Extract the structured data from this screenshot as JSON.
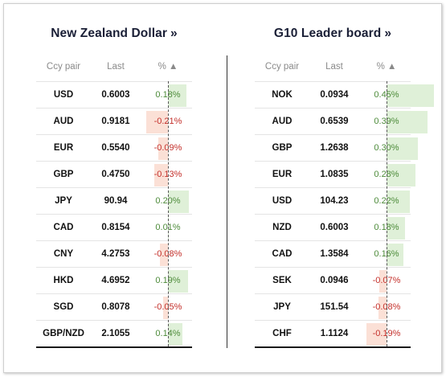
{
  "left_panel": {
    "title": "New Zealand Dollar",
    "chevron": "»",
    "headers": {
      "pair": "Ccy pair",
      "last": "Last",
      "pct": "% ▲"
    },
    "rows": [
      {
        "pair": "USD",
        "last": "0.6003",
        "pct": "0.18%",
        "value": 0.18
      },
      {
        "pair": "AUD",
        "last": "0.9181",
        "pct": "-0.21%",
        "value": -0.21
      },
      {
        "pair": "EUR",
        "last": "0.5540",
        "pct": "-0.09%",
        "value": -0.09
      },
      {
        "pair": "GBP",
        "last": "0.4750",
        "pct": "-0.13%",
        "value": -0.13
      },
      {
        "pair": "JPY",
        "last": "90.94",
        "pct": "0.20%",
        "value": 0.2
      },
      {
        "pair": "CAD",
        "last": "0.8154",
        "pct": "0.01%",
        "value": 0.01
      },
      {
        "pair": "CNY",
        "last": "4.2753",
        "pct": "-0.08%",
        "value": -0.08
      },
      {
        "pair": "HKD",
        "last": "4.6952",
        "pct": "0.19%",
        "value": 0.19
      },
      {
        "pair": "SGD",
        "last": "0.8078",
        "pct": "-0.05%",
        "value": -0.05
      },
      {
        "pair": "GBP/NZD",
        "last": "2.1055",
        "pct": "0.14%",
        "value": 0.14
      }
    ]
  },
  "right_panel": {
    "title": "G10 Leader board",
    "chevron": "»",
    "headers": {
      "pair": "Ccy pair",
      "last": "Last",
      "pct": "% ▲"
    },
    "rows": [
      {
        "pair": "NOK",
        "last": "0.0934",
        "pct": "0.45%",
        "value": 0.45
      },
      {
        "pair": "AUD",
        "last": "0.6539",
        "pct": "0.39%",
        "value": 0.39
      },
      {
        "pair": "GBP",
        "last": "1.2638",
        "pct": "0.30%",
        "value": 0.3
      },
      {
        "pair": "EUR",
        "last": "1.0835",
        "pct": "0.28%",
        "value": 0.28
      },
      {
        "pair": "USD",
        "last": "104.23",
        "pct": "0.22%",
        "value": 0.22
      },
      {
        "pair": "NZD",
        "last": "0.6003",
        "pct": "0.18%",
        "value": 0.18
      },
      {
        "pair": "CAD",
        "last": "1.3584",
        "pct": "0.16%",
        "value": 0.16
      },
      {
        "pair": "SEK",
        "last": "0.0946",
        "pct": "-0.07%",
        "value": -0.07
      },
      {
        "pair": "JPY",
        "last": "151.54",
        "pct": "-0.08%",
        "value": -0.08
      },
      {
        "pair": "CHF",
        "last": "1.1124",
        "pct": "-0.19%",
        "value": -0.19
      }
    ]
  },
  "colors": {
    "positive_text": "#4d8b3a",
    "negative_text": "#c4302b",
    "positive_bar": "#dff0d8",
    "negative_bar": "#fbe0d6",
    "title": "#1a1f36"
  }
}
